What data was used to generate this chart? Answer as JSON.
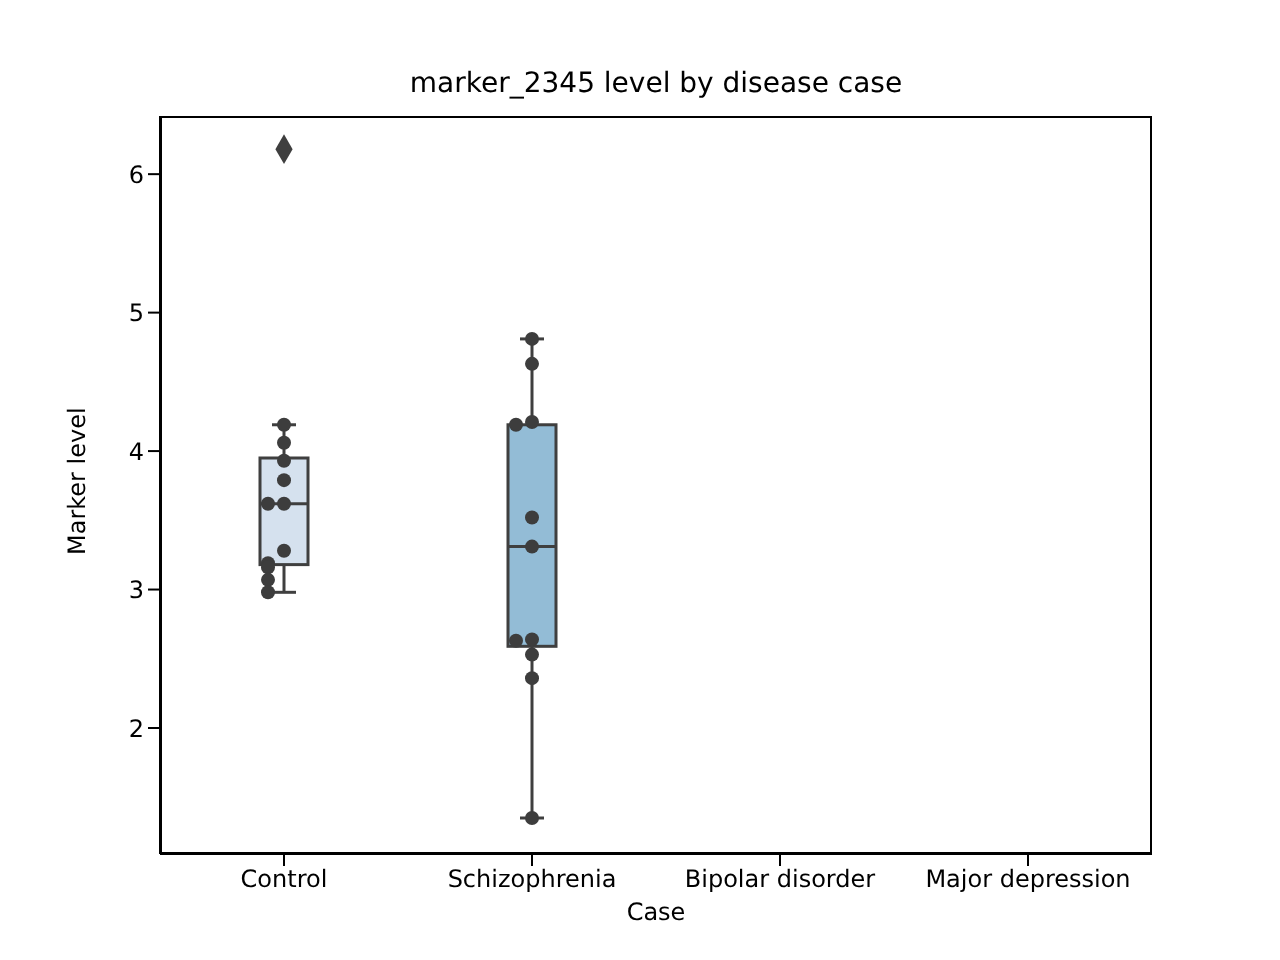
{
  "chart_data": {
    "type": "box",
    "title": "marker_2345 level by disease case",
    "xlabel": "Case",
    "ylabel": "Marker level",
    "categories": [
      "Control",
      "Schizophrenia",
      "Bipolar disorder",
      "Major depression"
    ],
    "boxes": [
      {
        "low": 2.98,
        "q1": 3.18,
        "median": 3.62,
        "q3": 3.95,
        "high": 4.19,
        "outliers": [
          6.18
        ]
      },
      {
        "low": 1.35,
        "q1": 2.59,
        "median": 3.31,
        "q3": 4.19,
        "high": 4.81
      },
      null,
      null
    ],
    "colors": [
      "#d5e1ee",
      "#93bcd6",
      null,
      null
    ],
    "ylim": [
      1.09,
      6.42
    ],
    "yticks": [
      2,
      3,
      4,
      5,
      6
    ],
    "grid": false,
    "legend": false,
    "series": [
      {
        "type": "scatter",
        "color": "#3d3d3d",
        "marker": "circle",
        "x": [
          "Control",
          "Control",
          "Control",
          "Control",
          "Control",
          "Control",
          "Control",
          "Control",
          "Control",
          "Control",
          "Control",
          "Schizophrenia",
          "Schizophrenia",
          "Schizophrenia",
          "Schizophrenia",
          "Schizophrenia",
          "Schizophrenia",
          "Schizophrenia",
          "Schizophrenia",
          "Schizophrenia",
          "Schizophrenia",
          "Schizophrenia"
        ],
        "values": [
          4.19,
          4.06,
          3.93,
          3.79,
          3.62,
          3.62,
          3.28,
          3.19,
          3.16,
          3.07,
          2.98,
          4.81,
          4.63,
          4.21,
          4.19,
          3.52,
          3.31,
          2.64,
          2.63,
          2.53,
          2.36,
          1.35
        ]
      }
    ]
  }
}
